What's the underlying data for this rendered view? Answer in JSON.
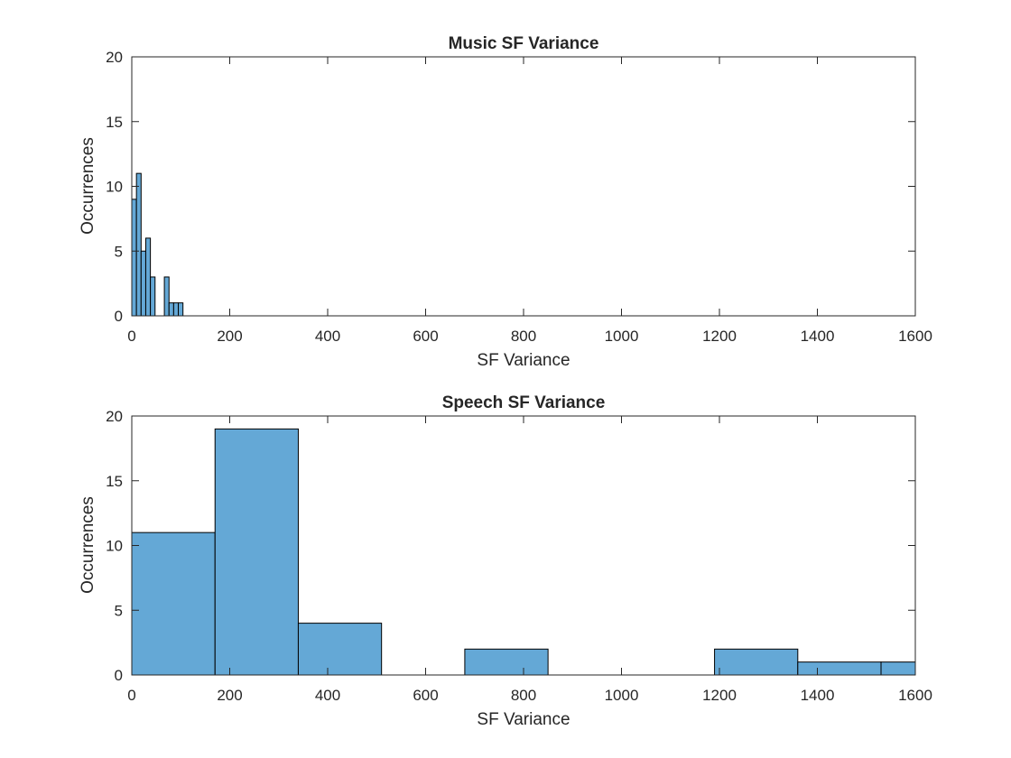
{
  "colors": {
    "bar_fill": "#64a8d6",
    "bar_edge": "#000000",
    "axis": "#262626",
    "background": "#ffffff"
  },
  "chart_data": [
    {
      "type": "histogram",
      "title": "Music SF Variance",
      "xlabel": "SF Variance",
      "ylabel": "Occurrences",
      "xlim": [
        0,
        1600
      ],
      "ylim": [
        0,
        20
      ],
      "xticks": [
        0,
        200,
        400,
        600,
        800,
        1000,
        1200,
        1400,
        1600
      ],
      "yticks": [
        0,
        5,
        10,
        15,
        20
      ],
      "grid": false,
      "bins": [
        {
          "x0": 0,
          "x1": 9.5,
          "count": 9
        },
        {
          "x0": 9.5,
          "x1": 19,
          "count": 11
        },
        {
          "x0": 19,
          "x1": 28.5,
          "count": 5
        },
        {
          "x0": 28.5,
          "x1": 38,
          "count": 6
        },
        {
          "x0": 38,
          "x1": 47.5,
          "count": 3
        },
        {
          "x0": 47.5,
          "x1": 57,
          "count": 0
        },
        {
          "x0": 57,
          "x1": 66.5,
          "count": 0
        },
        {
          "x0": 66.5,
          "x1": 76,
          "count": 3
        },
        {
          "x0": 76,
          "x1": 85.5,
          "count": 1
        },
        {
          "x0": 85.5,
          "x1": 95,
          "count": 1
        },
        {
          "x0": 95,
          "x1": 104.5,
          "count": 1
        }
      ]
    },
    {
      "type": "histogram",
      "title": "Speech SF Variance",
      "xlabel": "SF Variance",
      "ylabel": "Occurrences",
      "xlim": [
        0,
        1600
      ],
      "ylim": [
        0,
        20
      ],
      "xticks": [
        0,
        200,
        400,
        600,
        800,
        1000,
        1200,
        1400,
        1600
      ],
      "yticks": [
        0,
        5,
        10,
        15,
        20
      ],
      "grid": false,
      "bins": [
        {
          "x0": 0,
          "x1": 170,
          "count": 11
        },
        {
          "x0": 170,
          "x1": 340,
          "count": 19
        },
        {
          "x0": 340,
          "x1": 510,
          "count": 4
        },
        {
          "x0": 510,
          "x1": 680,
          "count": 0
        },
        {
          "x0": 680,
          "x1": 850,
          "count": 2
        },
        {
          "x0": 850,
          "x1": 1020,
          "count": 0
        },
        {
          "x0": 1020,
          "x1": 1190,
          "count": 0
        },
        {
          "x0": 1190,
          "x1": 1360,
          "count": 2
        },
        {
          "x0": 1360,
          "x1": 1530,
          "count": 1
        },
        {
          "x0": 1530,
          "x1": 1700,
          "count": 1
        }
      ]
    }
  ]
}
